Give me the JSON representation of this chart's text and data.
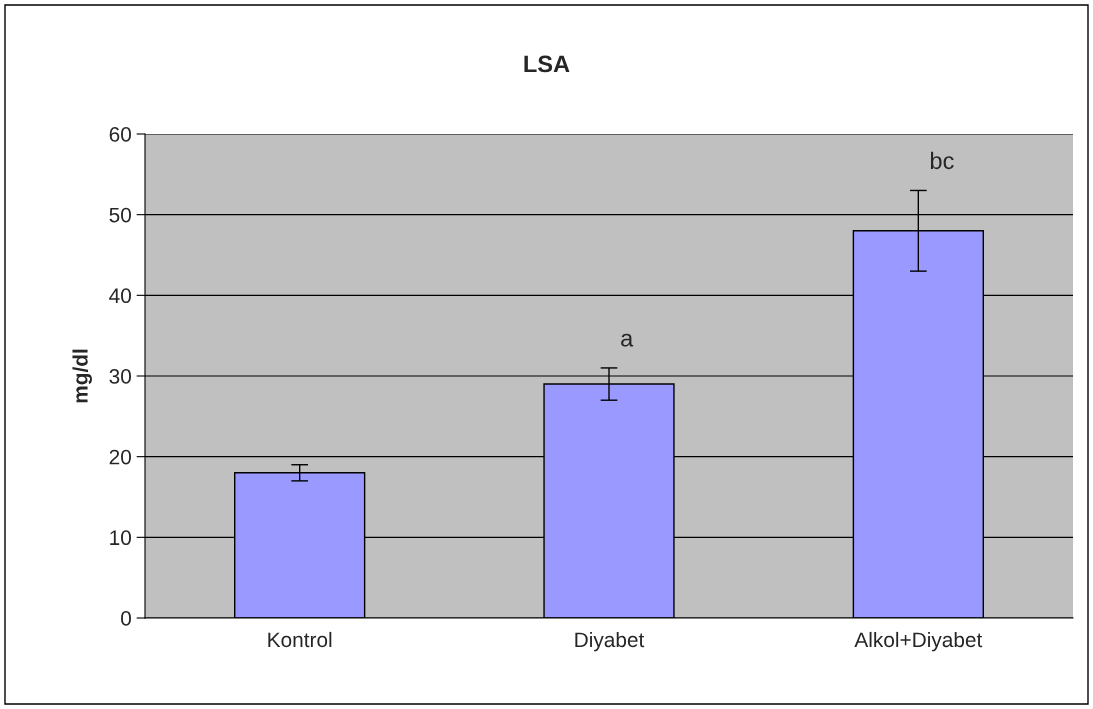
{
  "chart_data": {
    "type": "bar",
    "title": "LSA",
    "ylabel": "mg/dl",
    "categories": [
      "Kontrol",
      "Diyabet",
      "Alkol+Diyabet"
    ],
    "values": [
      18,
      29,
      48
    ],
    "errors": [
      1,
      2,
      5
    ],
    "color": "#9999ff",
    "ylim": [
      0,
      60
    ],
    "yticks": [
      0,
      10,
      20,
      30,
      40,
      50,
      60
    ],
    "grid": "y",
    "annotations": [
      "a",
      "bc"
    ]
  }
}
